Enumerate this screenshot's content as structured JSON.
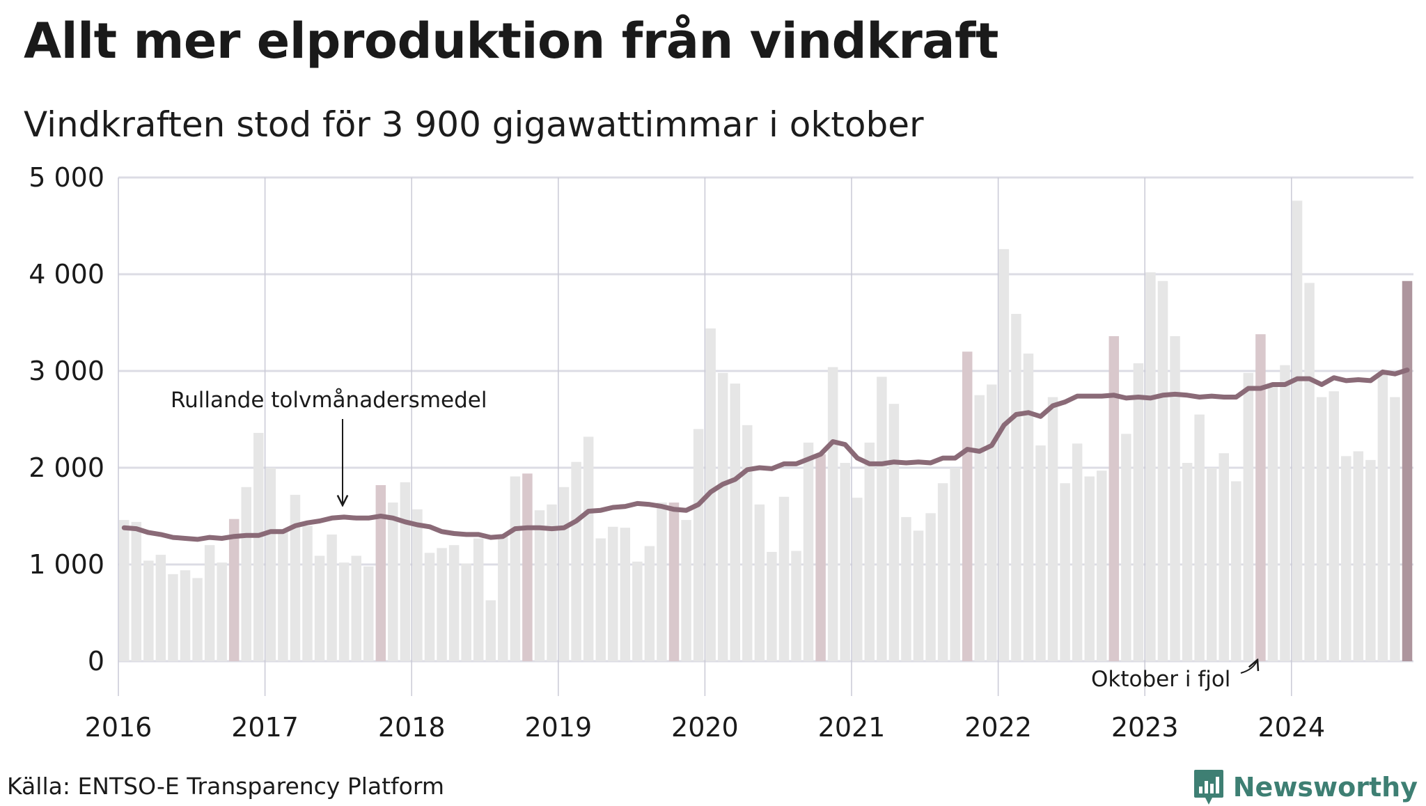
{
  "title": "Allt mer elproduktion från vindkraft",
  "subtitle": "Vindkraften stod för 3 900 gigawattimmar i oktober",
  "source": "Källa: ENTSO-E Transparency Platform",
  "brand": "Newsworthy",
  "annotations": {
    "rolling": "Rullande tolvmånadersmedel",
    "last_october": "Oktober i fjol"
  },
  "colors": {
    "bar": "#e6e6e6",
    "bar_october": "#d9c8cc",
    "bar_current": "#ad959d",
    "line": "#8a6a77",
    "grid": "#dcdce4",
    "brand": "#3e7f73"
  },
  "chart_data": {
    "type": "bar",
    "unit": "GWh",
    "start": "2016-01",
    "x_ticks": [
      "2016",
      "2017",
      "2018",
      "2019",
      "2020",
      "2021",
      "2022",
      "2023",
      "2024"
    ],
    "y_ticks": [
      "0",
      "1 000",
      "2 000",
      "3 000",
      "4 000",
      "5 000"
    ],
    "ylim": [
      0,
      5000
    ],
    "grid": true,
    "highlight": "october bars highlighted, last bar (October 2024) strongest",
    "series": [
      {
        "values": [
          1460,
          1440,
          1040,
          1100,
          900,
          940,
          860,
          1200,
          1020,
          1470,
          1800,
          2360,
          2000,
          1360,
          1720,
          1400,
          1090,
          1310,
          1020,
          1090,
          980,
          1820,
          1640,
          1850,
          1570,
          1120,
          1170,
          1200,
          1010,
          1270,
          630,
          1300,
          1910,
          1940,
          1560,
          1620,
          1800,
          2060,
          2320,
          1270,
          1390,
          1380,
          1030,
          1190,
          1640,
          1640,
          1460,
          2400,
          3440,
          2980,
          2870,
          2440,
          1620,
          1130,
          1700,
          1140,
          2260,
          2140,
          3040,
          2050,
          1690,
          2260,
          2940,
          2660,
          1490,
          1350,
          1530,
          1840,
          2000,
          3200,
          2750,
          2860,
          4260,
          3590,
          3180,
          2230,
          2730,
          1840,
          2250,
          1910,
          1970,
          3360,
          2350,
          3080,
          4020,
          3930,
          3360,
          2050,
          2550,
          2000,
          2150,
          1860,
          2980,
          3380,
          2870,
          3060,
          4760,
          3910,
          2730,
          2790,
          2120,
          2170,
          2080,
          2960,
          2730,
          3930
        ]
      },
      {
        "name": "Rullande tolvmånadersmedel",
        "values": [
          1380,
          1370,
          1330,
          1310,
          1280,
          1270,
          1260,
          1280,
          1270,
          1290,
          1300,
          1300,
          1340,
          1340,
          1400,
          1430,
          1450,
          1480,
          1490,
          1480,
          1480,
          1500,
          1480,
          1440,
          1410,
          1390,
          1340,
          1320,
          1310,
          1310,
          1280,
          1290,
          1370,
          1380,
          1380,
          1370,
          1380,
          1450,
          1550,
          1560,
          1590,
          1600,
          1630,
          1620,
          1600,
          1570,
          1560,
          1620,
          1750,
          1830,
          1880,
          1980,
          2000,
          1990,
          2040,
          2040,
          2090,
          2140,
          2270,
          2240,
          2100,
          2040,
          2040,
          2060,
          2050,
          2060,
          2050,
          2100,
          2100,
          2190,
          2170,
          2230,
          2440,
          2550,
          2570,
          2530,
          2640,
          2680,
          2740,
          2740,
          2740,
          2750,
          2720,
          2730,
          2720,
          2750,
          2760,
          2750,
          2730,
          2740,
          2730,
          2730,
          2820,
          2820,
          2860,
          2860,
          2920,
          2920,
          2860,
          2930,
          2900,
          2910,
          2900,
          2990,
          2970,
          3010
        ]
      }
    ]
  }
}
